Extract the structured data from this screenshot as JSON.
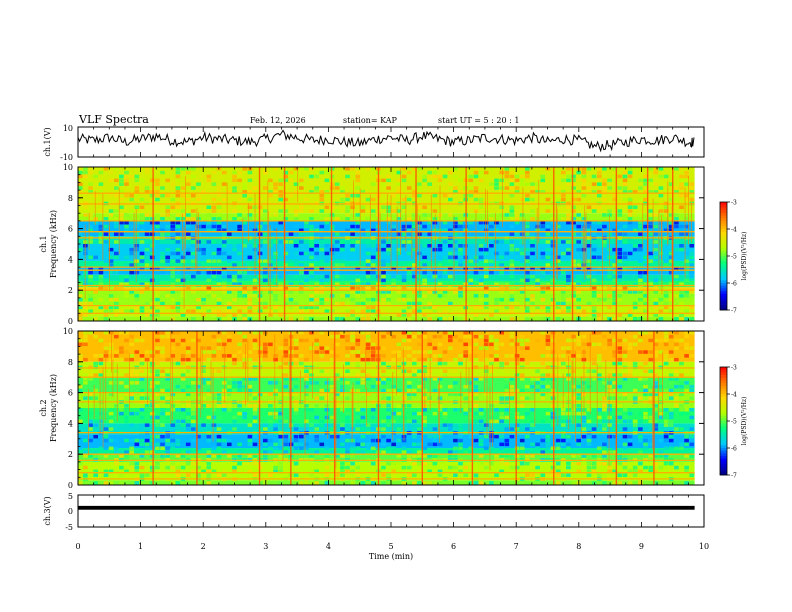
{
  "header": {
    "title": "VLF Spectra",
    "date": "Feb. 12, 2026",
    "station": "station= KAP",
    "start_ut": "start  UT =   5 : 20 : 1"
  },
  "colors": {
    "background": "#ffffff",
    "ink": "#000000",
    "colormap": [
      "#00007f",
      "#0000ff",
      "#00c8ff",
      "#00ff7f",
      "#b4ff00",
      "#ffd700",
      "#ff7800",
      "#ff0000"
    ]
  },
  "chart_data": [
    {
      "id": "ch1-waveform",
      "type": "line",
      "ylabel": "ch.1(V)",
      "ylim": [
        -10,
        10
      ],
      "yticks": [
        "10",
        "-10"
      ],
      "xlim": [
        0,
        10
      ],
      "x_data_end": 9.85,
      "series": [
        {
          "name": "ch.1 voltage",
          "x": [
            0.0,
            0.25,
            0.5,
            0.75,
            1.0,
            1.25,
            1.5,
            1.75,
            2.0,
            2.25,
            2.5,
            2.75,
            3.0,
            3.25,
            3.5,
            3.75,
            4.0,
            4.25,
            4.5,
            4.75,
            5.0,
            5.25,
            5.5,
            5.75,
            6.0,
            6.25,
            6.5,
            6.75,
            7.0,
            7.25,
            7.5,
            7.75,
            8.0,
            8.25,
            8.5,
            8.75,
            9.0,
            9.25,
            9.5,
            9.75,
            9.85
          ],
          "values": [
            2,
            1,
            3,
            0,
            2,
            4,
            1,
            0,
            3,
            2,
            1,
            0,
            2,
            5,
            3,
            1,
            2,
            0,
            -1,
            2,
            3,
            1,
            4,
            2,
            0,
            1,
            3,
            2,
            1,
            3,
            0,
            2,
            1,
            -3,
            -2,
            0,
            2,
            1,
            3,
            0,
            0
          ]
        }
      ],
      "annotations": [
        "Feb. 12, 2026",
        "station= KAP",
        "start  UT =   5 : 20 : 1"
      ]
    },
    {
      "id": "ch1-spectrogram",
      "type": "heatmap",
      "title": "ch.1",
      "ylabel": "Frequency (kHz)",
      "ylim": [
        0,
        10
      ],
      "yticks": [
        "0",
        "2",
        "4",
        "6",
        "8",
        "10"
      ],
      "xlim": [
        0,
        10
      ],
      "x_data_end": 9.85,
      "log_psd_bands": [
        {
          "from": 0.0,
          "to": 0.3,
          "level": -4.8
        },
        {
          "from": 0.3,
          "to": 1.0,
          "level": -4.6
        },
        {
          "from": 1.0,
          "to": 2.0,
          "level": -4.8
        },
        {
          "from": 2.0,
          "to": 2.2,
          "level": -4.1
        },
        {
          "from": 2.2,
          "to": 2.6,
          "level": -5.2
        },
        {
          "from": 2.6,
          "to": 3.0,
          "level": -5.5
        },
        {
          "from": 3.0,
          "to": 3.5,
          "level": -5.9
        },
        {
          "from": 3.5,
          "to": 3.9,
          "level": -5.4
        },
        {
          "from": 3.9,
          "to": 5.0,
          "level": -5.8
        },
        {
          "from": 5.0,
          "to": 5.5,
          "level": -5.5
        },
        {
          "from": 5.5,
          "to": 6.5,
          "level": -5.9
        },
        {
          "from": 6.5,
          "to": 7.0,
          "level": -4.8
        },
        {
          "from": 7.0,
          "to": 10.0,
          "level": -4.5
        }
      ],
      "line_frequencies_khz": [
        0.5,
        1.0,
        2.0,
        2.3,
        3.3,
        3.5,
        5.4,
        5.8,
        6.5,
        7.6,
        8.3
      ],
      "burst_times_min": [
        1.2,
        2.9,
        3.3,
        4.05,
        4.8,
        5.4,
        6.2,
        7.6,
        7.9,
        8.6,
        9.1,
        9.5
      ],
      "colorbar": {
        "label": "log(PSD)(V²/Hz)",
        "min": -7,
        "max": -3,
        "ticks": [
          "-3",
          "-4",
          "-5",
          "-6",
          "-7"
        ]
      }
    },
    {
      "id": "ch2-spectrogram",
      "type": "heatmap",
      "title": "ch.2",
      "ylabel": "Frequency (kHz)",
      "ylim": [
        0,
        10
      ],
      "yticks": [
        "0",
        "2",
        "4",
        "6",
        "8",
        "10"
      ],
      "xlim": [
        0,
        10
      ],
      "x_data_end": 9.85,
      "log_psd_bands": [
        {
          "from": 0.0,
          "to": 0.3,
          "level": -4.9
        },
        {
          "from": 0.3,
          "to": 1.5,
          "level": -4.7
        },
        {
          "from": 1.5,
          "to": 2.0,
          "level": -5.0
        },
        {
          "from": 2.0,
          "to": 2.4,
          "level": -5.4
        },
        {
          "from": 2.4,
          "to": 3.3,
          "level": -5.9
        },
        {
          "from": 3.3,
          "to": 4.0,
          "level": -5.6
        },
        {
          "from": 4.0,
          "to": 5.0,
          "level": -5.2
        },
        {
          "from": 5.0,
          "to": 6.0,
          "level": -4.8
        },
        {
          "from": 6.0,
          "to": 7.0,
          "level": -5.1
        },
        {
          "from": 7.0,
          "to": 8.0,
          "level": -4.6
        },
        {
          "from": 8.0,
          "to": 10.0,
          "level": -4.0
        }
      ],
      "line_frequencies_khz": [
        0.4,
        0.8,
        1.6,
        2.0,
        3.4,
        5.4,
        6.0,
        7.0,
        7.6
      ],
      "burst_times_min": [
        1.2,
        1.9,
        2.9,
        3.4,
        4.1,
        4.8,
        5.5,
        6.3,
        7.0,
        7.6,
        8.6,
        9.2
      ],
      "colorbar": {
        "label": "log(PSD)(V²/Hz)",
        "min": -7,
        "max": -3,
        "ticks": [
          "-3",
          "-4",
          "-5",
          "-6",
          "-7"
        ]
      }
    },
    {
      "id": "ch3-waveform",
      "type": "line",
      "ylabel": "ch.3(V)",
      "ylim": [
        -5,
        5
      ],
      "yticks": [
        "5",
        "0",
        "-5"
      ],
      "xlim": [
        0,
        10
      ],
      "x_data_end": 9.85,
      "series": [
        {
          "name": "ch.3 voltage",
          "x": [
            0.0,
            9.85
          ],
          "values": [
            1.0,
            1.0
          ],
          "band_width_v": 1.2
        }
      ]
    }
  ],
  "x_axis": {
    "label": "Time (min)",
    "ticks": [
      "0",
      "1",
      "2",
      "3",
      "4",
      "5",
      "6",
      "7",
      "8",
      "9",
      "10"
    ]
  }
}
